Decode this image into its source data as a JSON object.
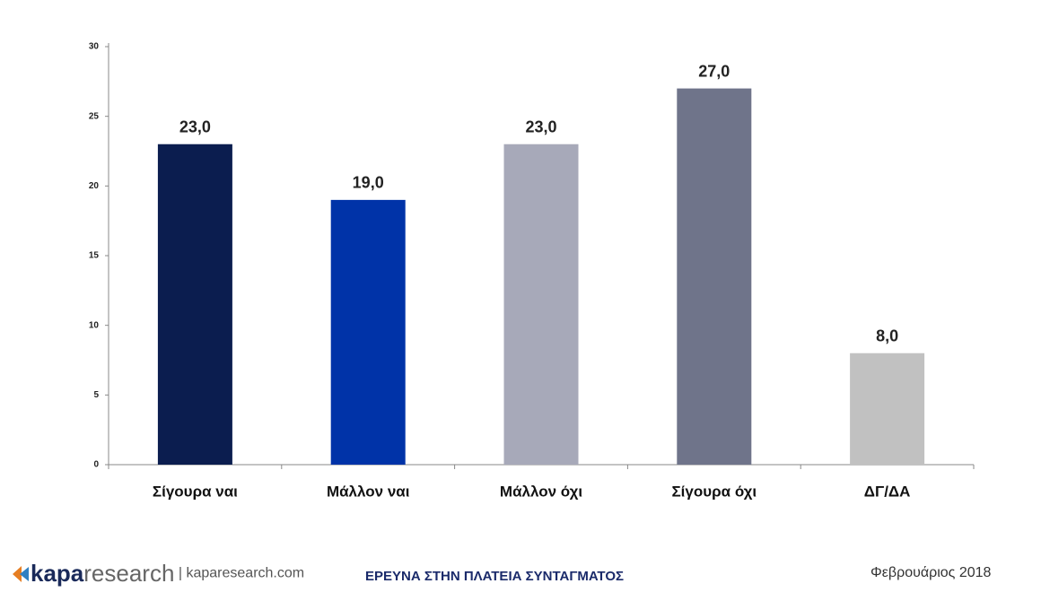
{
  "chart_data": {
    "type": "bar",
    "categories": [
      "Σίγουρα ναι",
      "Μάλλον ναι",
      "Μάλλον όχι",
      "Σίγουρα όχι",
      "ΔΓ/ΔΑ"
    ],
    "values": [
      23,
      19,
      23,
      27,
      8
    ],
    "value_labels": [
      "23,0",
      "19,0",
      "23,0",
      "27,0",
      "8,0"
    ],
    "colors": [
      "#0b1d4f",
      "#0033a8",
      "#a7a9b9",
      "#6f748a",
      "#c1c1c1"
    ],
    "ylim": [
      0,
      30
    ],
    "yticks": [
      0,
      5,
      10,
      15,
      20,
      25,
      30
    ]
  },
  "footer": {
    "brand_bold": "kapa",
    "brand_light": "research",
    "website": "| kaparesearch.com",
    "title": "ΕΡΕΥΝΑ ΣΤΗΝ ΠΛΑΤΕΙΑ ΣΥΝΤΑΓΜΑΤΟΣ",
    "date": "Φεβρουάριος 2018"
  }
}
